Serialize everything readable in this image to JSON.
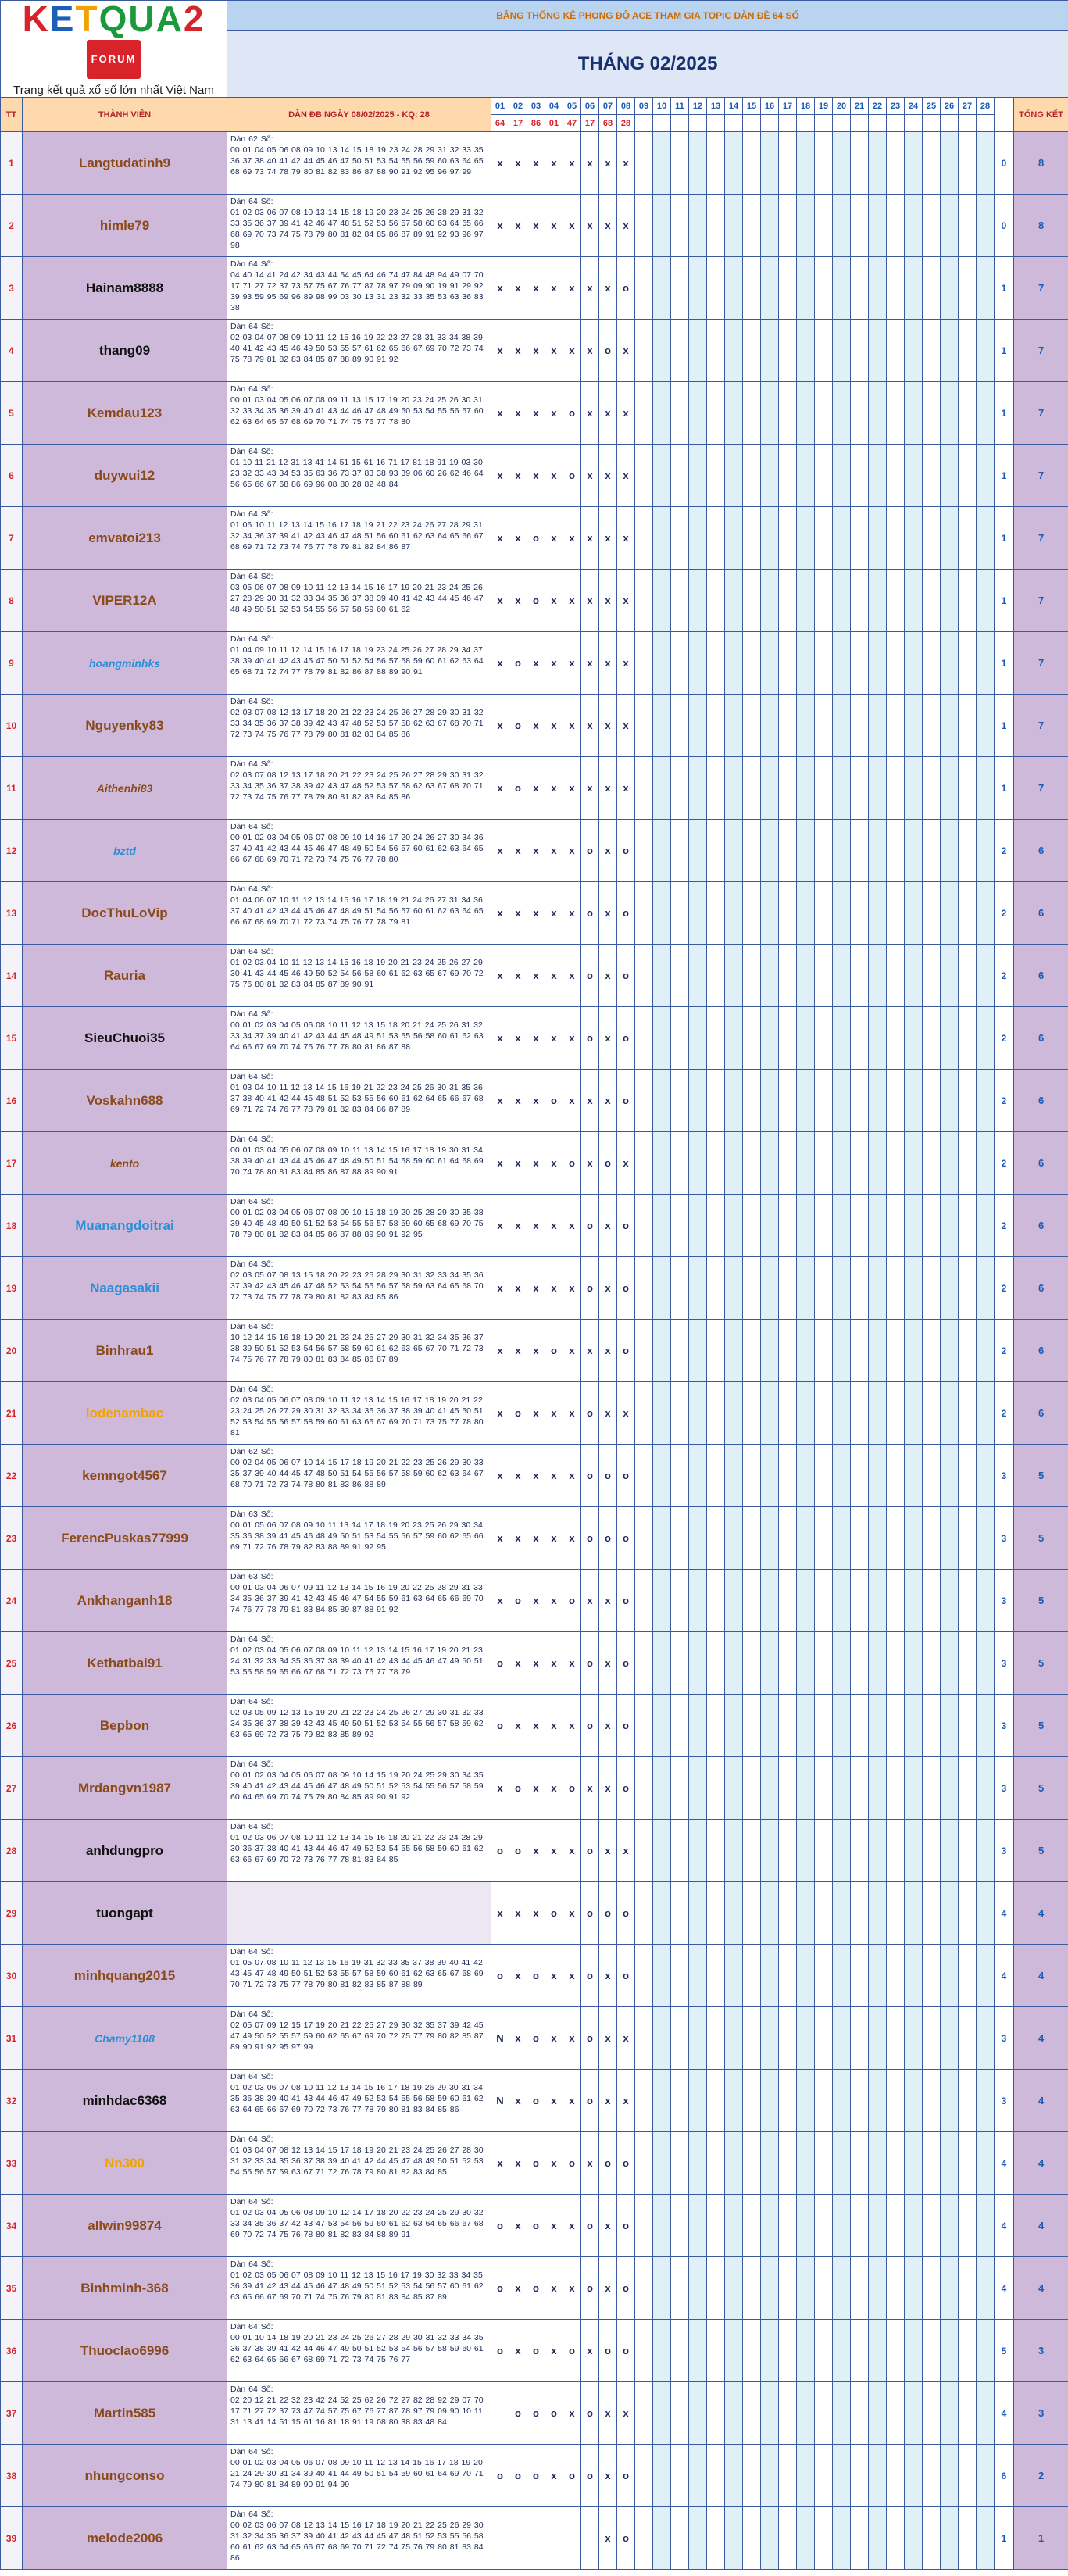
{
  "logo": {
    "text": "KETQUA2",
    "badge": "FORUM",
    "tagline": "Trang kết quả xổ số lớn nhất Việt Nam"
  },
  "banner": "BẢNG THỐNG KÊ PHONG ĐỘ ACE THAM GIA TOPIC DÀN ĐỀ 64 SỐ",
  "month_title": "THÁNG 02/2025",
  "headers": {
    "tt": "TT",
    "member": "THÀNH VIÊN",
    "dan": "DÀN ĐB NGÀY 08/02/2025 - KQ: 28",
    "total": "TỔNG KẾT"
  },
  "days": [
    "01",
    "02",
    "03",
    "04",
    "05",
    "06",
    "07",
    "08",
    "09",
    "10",
    "11",
    "12",
    "13",
    "14",
    "15",
    "16",
    "17",
    "18",
    "19",
    "20",
    "21",
    "22",
    "23",
    "24",
    "25",
    "26",
    "27",
    "28"
  ],
  "results": [
    "64",
    "17",
    "86",
    "01",
    "47",
    "17",
    "68",
    "28"
  ],
  "rows": [
    {
      "tt": "1",
      "name": "Langtudatinh9",
      "color": "#8a4a1a",
      "italic": false,
      "dan": "Dàn 62 Số:\n00 01 04 05 06 08 09 10 13 14 15 18 19 23 24 28 29 31 32 33 35 36 37 38 40 41 42 44 45 46 47 50 51 53 54 55 56 59 60 63 64 65 68 69 73 74 78 79 80 81 82 83 86 87 88 90 91 92 95 96 97 99",
      "marks": [
        "x",
        "x",
        "x",
        "x",
        "x",
        "x",
        "x",
        "x"
      ],
      "miss": "0",
      "total": "8"
    },
    {
      "tt": "2",
      "name": "himle79",
      "color": "#8a4a1a",
      "italic": false,
      "dan": "Dàn 64 Số:\n01 02 03 06 07 08 10 13 14 15 18 19 20 23 24 25 26 28 29 31 32 33 35 36 37 39 41 42 46 47 48 51 52 53 56 57 58 60 63 64 65 66 68 69 70 73 74 75 78 79 80 81 82 84 85 86 87 89 91 92 93 96 97 98",
      "marks": [
        "x",
        "x",
        "x",
        "x",
        "x",
        "x",
        "x",
        "x"
      ],
      "miss": "0",
      "total": "8"
    },
    {
      "tt": "3",
      "name": "Hainam8888",
      "color": "#111111",
      "italic": false,
      "dan": "Dàn 64 Số:\n04 40 14 41 24 42 34 43 44 54 45 64 46 74 47 84 48 94 49 07 70 17 71 27 72 37 73 57 75 67 76 77 87 78 97 79 09 90 19 91 29 92 39 93 59 95 69 96 89 98 99 03 30 13 31 23 32 33 35 53 63 36 83 38",
      "marks": [
        "x",
        "x",
        "x",
        "x",
        "x",
        "x",
        "x",
        "o"
      ],
      "miss": "1",
      "total": "7"
    },
    {
      "tt": "4",
      "name": "thang09",
      "color": "#111111",
      "italic": false,
      "dan": "Dàn 64 Số:\n02 03 04 07 08 09 10 11 12 15 16 19 22 23 27 28 31 33 34 38 39 40 41 42 43 45 46 49 50 53 55 57 61 62 65 66 67 69 70 72 73 74 75 78 79 81 82 83 84 85 87 88 89 90 91 92",
      "marks": [
        "x",
        "x",
        "x",
        "x",
        "x",
        "x",
        "o",
        "x"
      ],
      "miss": "1",
      "total": "7"
    },
    {
      "tt": "5",
      "name": "Kemdau123",
      "color": "#8a4a1a",
      "italic": false,
      "dan": "Dàn 64 Số:\n00 01 03 04 05 06 07 08 09 11 13 15 17 19 20 23 24 25 26 30 31 32 33 34 35 36 39 40 41 43 44 46 47 48 49 50 53 54 55 56 57 60 62 63 64 65 67 68 69 70 71 74 75 76 77 78 80",
      "marks": [
        "x",
        "x",
        "x",
        "x",
        "o",
        "x",
        "x",
        "x"
      ],
      "miss": "1",
      "total": "7"
    },
    {
      "tt": "6",
      "name": "duywui12",
      "color": "#8a4a1a",
      "italic": false,
      "dan": "Dàn 64 Số:\n01 10 11 21 12 31 13 41 14 51 15 61 16 71 17 81 18 91 19 03 30 23 32 33 43 34 53 35 63 36 73 37 83 38 93 39 06 60 26 62 46 64 56 65 66 67 68 86 69 96 08 80 28 82 48 84",
      "marks": [
        "x",
        "x",
        "x",
        "x",
        "o",
        "x",
        "x",
        "x"
      ],
      "miss": "1",
      "total": "7"
    },
    {
      "tt": "7",
      "name": "emvatoi213",
      "color": "#8a4a1a",
      "italic": false,
      "dan": "Dàn 64 Số:\n01 06 10 11 12 13 14 15 16 17 18 19 21 22 23 24 26 27 28 29 31 32 34 36 37 39 41 42 43 46 47 48 51 56 60 61 62 63 64 65 66 67 68 69 71 72 73 74 76 77 78 79 81 82 84 86 87",
      "marks": [
        "x",
        "x",
        "o",
        "x",
        "x",
        "x",
        "x",
        "x"
      ],
      "miss": "1",
      "total": "7"
    },
    {
      "tt": "8",
      "name": "VIPER12A",
      "color": "#8a4a1a",
      "italic": false,
      "dan": "Dàn 64 Số:\n03 05 06 07 08 09 10 11 12 13 14 15 16 17 19 20 21 23 24 25 26 27 28 29 30 31 32 33 34 35 36 37 38 39 40 41 42 43 44 45 46 47 48 49 50 51 52 53 54 55 56 57 58 59 60 61 62",
      "marks": [
        "x",
        "x",
        "o",
        "x",
        "x",
        "x",
        "x",
        "x"
      ],
      "miss": "1",
      "total": "7"
    },
    {
      "tt": "9",
      "name": "hoangminhks",
      "color": "#2a8fd8",
      "italic": true,
      "dan": "Dàn 64 Số:\n01 04 09 10 11 12 14 15 16 17 18 19 23 24 25 26 27 28 29 34 37 38 39 40 41 42 43 45 47 50 51 52 54 56 57 58 59 60 61 62 63 64 65 68 71 72 74 77 78 79 81 82 86 87 88 89 90 91",
      "marks": [
        "x",
        "o",
        "x",
        "x",
        "x",
        "x",
        "x",
        "x"
      ],
      "miss": "1",
      "total": "7"
    },
    {
      "tt": "10",
      "name": "Nguyenky83",
      "color": "#8a4a1a",
      "italic": false,
      "dan": "Dàn 64 Số:\n02 03 07 08 12 13 17 18 20 21 22 23 24 25 26 27 28 29 30 31 32 33 34 35 36 37 38 39 42 43 47 48 52 53 57 58 62 63 67 68 70 71 72 73 74 75 76 77 78 79 80 81 82 83 84 85 86",
      "marks": [
        "x",
        "o",
        "x",
        "x",
        "x",
        "x",
        "x",
        "x"
      ],
      "miss": "1",
      "total": "7"
    },
    {
      "tt": "11",
      "name": "Aithenhi83",
      "color": "#8a4a1a",
      "italic": true,
      "dan": "Dàn 64 Số:\n02 03 07 08 12 13 17 18 20 21 22 23 24 25 26 27 28 29 30 31 32 33 34 35 36 37 38 39 42 43 47 48 52 53 57 58 62 63 67 68 70 71 72 73 74 75 76 77 78 79 80 81 82 83 84 85 86",
      "marks": [
        "x",
        "o",
        "x",
        "x",
        "x",
        "x",
        "x",
        "x"
      ],
      "miss": "1",
      "total": "7"
    },
    {
      "tt": "12",
      "name": "bztd",
      "color": "#2a8fd8",
      "italic": true,
      "dan": "Dàn 64 Số:\n00 01 02 03 04 05 06 07 08 09 10 14 16 17 20 24 26 27 30 34 36 37 40 41 42 43 44 45 46 47 48 49 50 54 56 57 60 61 62 63 64 65 66 67 68 69 70 71 72 73 74 75 76 77 78 80",
      "marks": [
        "x",
        "x",
        "x",
        "x",
        "x",
        "o",
        "x",
        "o"
      ],
      "miss": "2",
      "total": "6"
    },
    {
      "tt": "13",
      "name": "DocThuLoVip",
      "color": "#8a4a1a",
      "italic": false,
      "dan": "Dàn 64 Số:\n01 04 06 07 10 11 12 13 14 15 16 17 18 19 21 24 26 27 31 34 36 37 40 41 42 43 44 45 46 47 48 49 51 54 56 57 60 61 62 63 64 65 66 67 68 69 70 71 72 73 74 75 76 77 78 79 81",
      "marks": [
        "x",
        "x",
        "x",
        "x",
        "x",
        "o",
        "x",
        "o"
      ],
      "miss": "2",
      "total": "6"
    },
    {
      "tt": "14",
      "name": "Rauria",
      "color": "#8a4a1a",
      "italic": false,
      "dan": "Dàn 64 Số:\n01 02 03 04 10 11 12 13 14 15 16 18 19 20 21 23 24 25 26 27 29 30 41 43 44 45 46 49 50 52 54 56 58 60 61 62 63 65 67 69 70 72 75 76 80 81 82 83 84 85 87 89 90 91",
      "marks": [
        "x",
        "x",
        "x",
        "x",
        "x",
        "o",
        "x",
        "o"
      ],
      "miss": "2",
      "total": "6"
    },
    {
      "tt": "15",
      "name": "SieuChuoi35",
      "color": "#111111",
      "italic": false,
      "dan": "Dàn 64 Số:\n00 01 02 03 04 05 06 08 10 11 12 13 15 18 20 21 24 25 26 31 32 33 34 37 39 40 41 42 43 44 45 48 49 51 53 55 56 58 60 61 62 63 64 66 67 69 70 74 75 76 77 78 80 81 86 87 88",
      "marks": [
        "x",
        "x",
        "x",
        "x",
        "x",
        "o",
        "x",
        "o"
      ],
      "miss": "2",
      "total": "6"
    },
    {
      "tt": "16",
      "name": "Voskahn688",
      "color": "#8a4a1a",
      "italic": false,
      "dan": "Dàn 64 Số:\n01 03 04 10 11 12 13 14 15 16 19 21 22 23 24 25 26 30 31 35 36 37 38 40 41 42 44 45 48 51 52 53 55 56 60 61 62 64 65 66 67 68 69 71 72 74 76 77 78 79 81 82 83 84 86 87 89",
      "marks": [
        "x",
        "x",
        "x",
        "o",
        "x",
        "x",
        "x",
        "o"
      ],
      "miss": "2",
      "total": "6"
    },
    {
      "tt": "17",
      "name": "kento",
      "color": "#8a4a1a",
      "italic": true,
      "dan": "Dàn 64 Số:\n00 01 03 04 05 06 07 08 09 10 11 13 14 15 16 17 18 19 30 31 34 38 39 40 41 43 44 45 46 47 48 49 50 51 54 58 59 60 61 64 68 69 70 74 78 80 81 83 84 85 86 87 88 89 90 91",
      "marks": [
        "x",
        "x",
        "x",
        "x",
        "o",
        "x",
        "o",
        "x"
      ],
      "miss": "2",
      "total": "6"
    },
    {
      "tt": "18",
      "name": "Muanangdoitrai",
      "color": "#2a8fd8",
      "italic": false,
      "dan": "Dàn 64 Số:\n00 01 02 03 04 05 06 07 08 09 10 15 18 19 20 25 28 29 30 35 38 39 40 45 48 49 50 51 52 53 54 55 56 57 58 59 60 65 68 69 70 75 78 79 80 81 82 83 84 85 86 87 88 89 90 91 92 95",
      "marks": [
        "x",
        "x",
        "x",
        "x",
        "x",
        "o",
        "x",
        "o"
      ],
      "miss": "2",
      "total": "6"
    },
    {
      "tt": "19",
      "name": "Naagasakii",
      "color": "#2a8fd8",
      "italic": false,
      "dan": "Dàn 64 Số:\n02 03 05 07 08 13 15 18 20 22 23 25 28 29 30 31 32 33 34 35 36 37 39 42 43 45 46 47 48 52 53 54 55 56 57 58 59 63 64 65 68 70 72 73 74 75 77 78 79 80 81 82 83 84 85 86",
      "marks": [
        "x",
        "x",
        "x",
        "x",
        "x",
        "o",
        "x",
        "o"
      ],
      "miss": "2",
      "total": "6"
    },
    {
      "tt": "20",
      "name": "Binhrau1",
      "color": "#8a4a1a",
      "italic": false,
      "dan": "Dàn 64 Số:\n10 12 14 15 16 18 19 20 21 23 24 25 27 29 30 31 32 34 35 36 37 38 39 50 51 52 53 54 56 57 58 59 60 61 62 63 65 67 70 71 72 73 74 75 76 77 78 79 80 81 83 84 85 86 87 89",
      "marks": [
        "x",
        "x",
        "x",
        "o",
        "x",
        "x",
        "x",
        "o"
      ],
      "miss": "2",
      "total": "6"
    },
    {
      "tt": "21",
      "name": "lodenambac",
      "color": "#f2a200",
      "italic": false,
      "dan": "Dàn 64 Số:\n02 03 04 05 06 07 08 09 10 11 12 13 14 15 16 17 18 19 20 21 22 23 24 25 26 27 29 30 31 32 33 34 35 36 37 38 39 40 41 45 50 51 52 53 54 55 56 57 58 59 60 61 63 65 67 69 70 71 73 75 77 78 80 81",
      "marks": [
        "x",
        "o",
        "x",
        "x",
        "x",
        "o",
        "x",
        "x"
      ],
      "miss": "2",
      "total": "6"
    },
    {
      "tt": "22",
      "name": "kemngot4567",
      "color": "#8a4a1a",
      "italic": false,
      "dan": "Dàn 62 Số:\n00 02 04 05 06 07 10 14 15 17 18 19 20 21 22 23 25 26 29 30 33 35 37 39 40 44 45 47 48 50 51 54 55 56 57 58 59 60 62 63 64 67 68 70 71 72 73 74 78 80 81 83 86 88 89",
      "marks": [
        "x",
        "x",
        "x",
        "x",
        "x",
        "o",
        "o",
        "o"
      ],
      "miss": "3",
      "total": "5"
    },
    {
      "tt": "23",
      "name": "FerencPuskas77999",
      "color": "#8a4a1a",
      "italic": false,
      "dan": "Dàn 63 Số:\n00 01 05 06 07 08 09 10 11 13 14 17 18 19 20 23 25 26 29 30 34 35 36 38 39 41 45 46 48 49 50 51 53 54 55 56 57 59 60 62 65 66 69 71 72 76 78 79 82 83 88 89 91 92 95",
      "marks": [
        "x",
        "x",
        "x",
        "x",
        "x",
        "o",
        "o",
        "o"
      ],
      "miss": "3",
      "total": "5"
    },
    {
      "tt": "24",
      "name": "Ankhanganh18",
      "color": "#8a4a1a",
      "italic": false,
      "dan": "Dàn 63 Số:\n00 01 03 04 06 07 09 11 12 13 14 15 16 19 20 22 25 28 29 31 33 34 35 36 37 39 41 42 43 45 46 47 54 55 59 61 63 64 65 66 69 70 74 76 77 78 79 81 83 84 85 89 87 88 91 92",
      "marks": [
        "x",
        "o",
        "x",
        "x",
        "o",
        "x",
        "x",
        "o"
      ],
      "miss": "3",
      "total": "5"
    },
    {
      "tt": "25",
      "name": "Kethatbai91",
      "color": "#8a4a1a",
      "italic": false,
      "dan": "Dàn 64 Số:\n01 02 03 04 05 06 07 08 09 10 11 12 13 14 15 16 17 19 20 21 23 24 31 32 33 34 35 36 37 38 39 40 41 42 43 44 45 46 47 49 50 51 53 55 58 59 65 66 67 68 71 72 73 75 77 78 79",
      "marks": [
        "o",
        "x",
        "x",
        "x",
        "x",
        "o",
        "x",
        "o"
      ],
      "miss": "3",
      "total": "5"
    },
    {
      "tt": "26",
      "name": "Bepbon",
      "color": "#8a4a1a",
      "italic": false,
      "dan": "Dàn 64 Số:\n02 03 05 09 12 13 15 19 20 21 22 23 24 25 26 27 29 30 31 32 33 34 35 36 37 38 39 42 43 45 49 50 51 52 53 54 55 56 57 58 59 62 63 65 69 72 73 75 79 82 83 85 89 92",
      "marks": [
        "o",
        "x",
        "x",
        "x",
        "x",
        "o",
        "x",
        "o"
      ],
      "miss": "3",
      "total": "5"
    },
    {
      "tt": "27",
      "name": "Mrdangvn1987",
      "color": "#8a4a1a",
      "italic": false,
      "dan": "Dàn 64 Số:\n00 01 02 03 04 05 06 07 08 09 10 14 15 19 20 24 25 29 30 34 35 39 40 41 42 43 44 45 46 47 48 49 50 51 52 53 54 55 56 57 58 59 60 64 65 69 70 74 75 79 80 84 85 89 90 91 92",
      "marks": [
        "x",
        "o",
        "x",
        "x",
        "o",
        "x",
        "x",
        "o"
      ],
      "miss": "3",
      "total": "5"
    },
    {
      "tt": "28",
      "name": "anhdungpro",
      "color": "#111111",
      "italic": false,
      "dan": "Dàn 64 Số:\n01 02 03 06 07 08 10 11 12 13 14 15 16 18 20 21 22 23 24 28 29 30 36 37 38 40 41 43 44 46 47 49 52 53 54 55 56 58 59 60 61 62 63 66 67 69 70 72 73 76 77 78 81 83 84 85",
      "marks": [
        "o",
        "o",
        "x",
        "x",
        "x",
        "o",
        "x",
        "x"
      ],
      "miss": "3",
      "total": "5"
    },
    {
      "tt": "29",
      "name": "tuongapt",
      "color": "#111111",
      "italic": false,
      "dan": "",
      "marks": [
        "x",
        "x",
        "x",
        "o",
        "x",
        "o",
        "o",
        "o"
      ],
      "miss": "4",
      "total": "4"
    },
    {
      "tt": "30",
      "name": "minhquang2015",
      "color": "#8a4a1a",
      "italic": false,
      "dan": "Dàn 64 Số:\n01 05 07 08 10 11 12 13 15 16 19 31 32 33 35 37 38 39 40 41 42 43 45 47 48 49 50 51 52 53 55 57 58 59 60 61 62 63 65 67 68 69 70 71 72 73 75 77 78 79 80 81 82 83 85 87 88 89",
      "marks": [
        "o",
        "x",
        "o",
        "x",
        "x",
        "o",
        "x",
        "o"
      ],
      "miss": "4",
      "total": "4"
    },
    {
      "tt": "31",
      "name": "Chamy1108",
      "color": "#2a8fd8",
      "italic": true,
      "dan": "Dàn 64 Số:\n02 05 07 09 12 15 17 19 20 21 22 25 27 29 30 32 35 37 39 42 45 47 49 50 52 55 57 59 60 62 65 67 69 70 72 75 77 79 80 82 85 87 89 90 91 92 95 97 99",
      "marks": [
        "N",
        "x",
        "o",
        "x",
        "x",
        "o",
        "x",
        "x"
      ],
      "miss": "3",
      "total": "4"
    },
    {
      "tt": "32",
      "name": "minhdac6368",
      "color": "#111111",
      "italic": false,
      "dan": "Dàn 64 Số:\n01 02 03 06 07 08 10 11 12 13 14 15 16 17 18 19 26 29 30 31 34 35 36 38 39 40 41 43 44 46 47 49 52 53 54 55 56 58 59 60 61 62 63 64 65 66 67 69 70 72 73 76 77 78 79 80 81 83 84 85 86",
      "marks": [
        "N",
        "x",
        "o",
        "x",
        "x",
        "o",
        "x",
        "x"
      ],
      "miss": "3",
      "total": "4"
    },
    {
      "tt": "33",
      "name": "Nn300",
      "color": "#f2a200",
      "italic": false,
      "dan": "Dàn 64 Số:\n01 03 04 07 08 12 13 14 15 17 18 19 20 21 23 24 25 26 27 28 30 31 32 33 34 35 36 37 38 39 40 41 42 44 45 47 48 49 50 51 52 53 54 55 56 57 59 63 67 71 72 76 78 79 80 81 82 83 84 85",
      "marks": [
        "x",
        "x",
        "o",
        "x",
        "o",
        "x",
        "o",
        "o"
      ],
      "miss": "4",
      "total": "4"
    },
    {
      "tt": "34",
      "name": "allwin99874",
      "color": "#8a4a1a",
      "italic": false,
      "dan": "Dàn 64 Số:\n01 02 03 04 05 06 08 09 10 12 14 17 18 20 22 23 24 25 29 30 32 33 34 35 36 37 42 43 47 53 54 56 59 60 61 62 63 64 65 66 67 68 69 70 72 74 75 76 78 80 81 82 83 84 88 89 91",
      "marks": [
        "o",
        "x",
        "o",
        "x",
        "x",
        "o",
        "x",
        "o"
      ],
      "miss": "4",
      "total": "4"
    },
    {
      "tt": "35",
      "name": "Binhminh-368",
      "color": "#8a4a1a",
      "italic": false,
      "dan": "Dàn 64 Số:\n01 02 03 05 06 07 08 09 10 11 12 13 15 16 17 19 30 32 33 34 35 36 39 41 42 43 44 45 46 47 48 49 50 51 52 53 54 56 57 60 61 62 63 65 66 67 69 70 71 74 75 76 79 80 81 83 84 85 87 89",
      "marks": [
        "o",
        "x",
        "o",
        "x",
        "x",
        "o",
        "x",
        "o"
      ],
      "miss": "4",
      "total": "4"
    },
    {
      "tt": "36",
      "name": "Thuoclao6996",
      "color": "#8a4a1a",
      "italic": false,
      "dan": "Dàn 64 Số:\n00 01 10 14 18 19 20 21 23 24 25 26 27 28 29 30 31 32 33 34 35 36 37 38 39 41 42 44 46 47 49 50 51 52 53 54 56 57 58 59 60 61 62 63 64 65 66 67 68 69 71 72 73 74 75 76 77",
      "marks": [
        "o",
        "x",
        "o",
        "x",
        "o",
        "x",
        "o",
        "o"
      ],
      "miss": "5",
      "total": "3"
    },
    {
      "tt": "37",
      "name": "Martin585",
      "color": "#8a4a1a",
      "italic": false,
      "dan": "Dàn 64 Số:\n02 20 12 21 22 32 23 42 24 52 25 62 26 72 27 82 28 92 29 07 70 17 71 27 72 37 73 47 74 57 75 67 76 77 87 78 97 79 09 90 10 11 31 13 41 14 51 15 61 16 81 18 91 19 08 80 38 83 48 84",
      "marks": [
        "",
        "o",
        "o",
        "o",
        "x",
        "o",
        "x",
        "x"
      ],
      "miss": "4",
      "total": "3"
    },
    {
      "tt": "38",
      "name": "nhungconso",
      "color": "#8a4a1a",
      "italic": false,
      "dan": "Dàn 64 Số:\n00 01 02 03 04 05 06 07 08 09 10 11 12 13 14 15 16 17 18 19 20 21 24 29 30 31 34 39 40 41 44 49 50 51 54 59 60 61 64 69 70 71 74 79 80 81 84 89 90 91 94 99",
      "marks": [
        "o",
        "o",
        "o",
        "x",
        "o",
        "o",
        "x",
        "o"
      ],
      "miss": "6",
      "total": "2"
    },
    {
      "tt": "39",
      "name": "melode2006",
      "color": "#8a4a1a",
      "italic": false,
      "dan": "Dàn 64 Số:\n00 02 03 06 07 08 12 13 14 15 16 17 18 19 20 21 22 25 26 29 30 31 32 34 35 36 37 39 40 41 42 43 44 45 47 48 51 52 53 55 56 58 60 61 62 63 64 65 66 67 68 69 70 71 72 74 75 76 79 80 81 83 84 86",
      "marks": [
        "",
        "",
        "",
        "",
        "",
        "",
        "x",
        "o"
      ],
      "miss": "1",
      "total": "1"
    }
  ]
}
